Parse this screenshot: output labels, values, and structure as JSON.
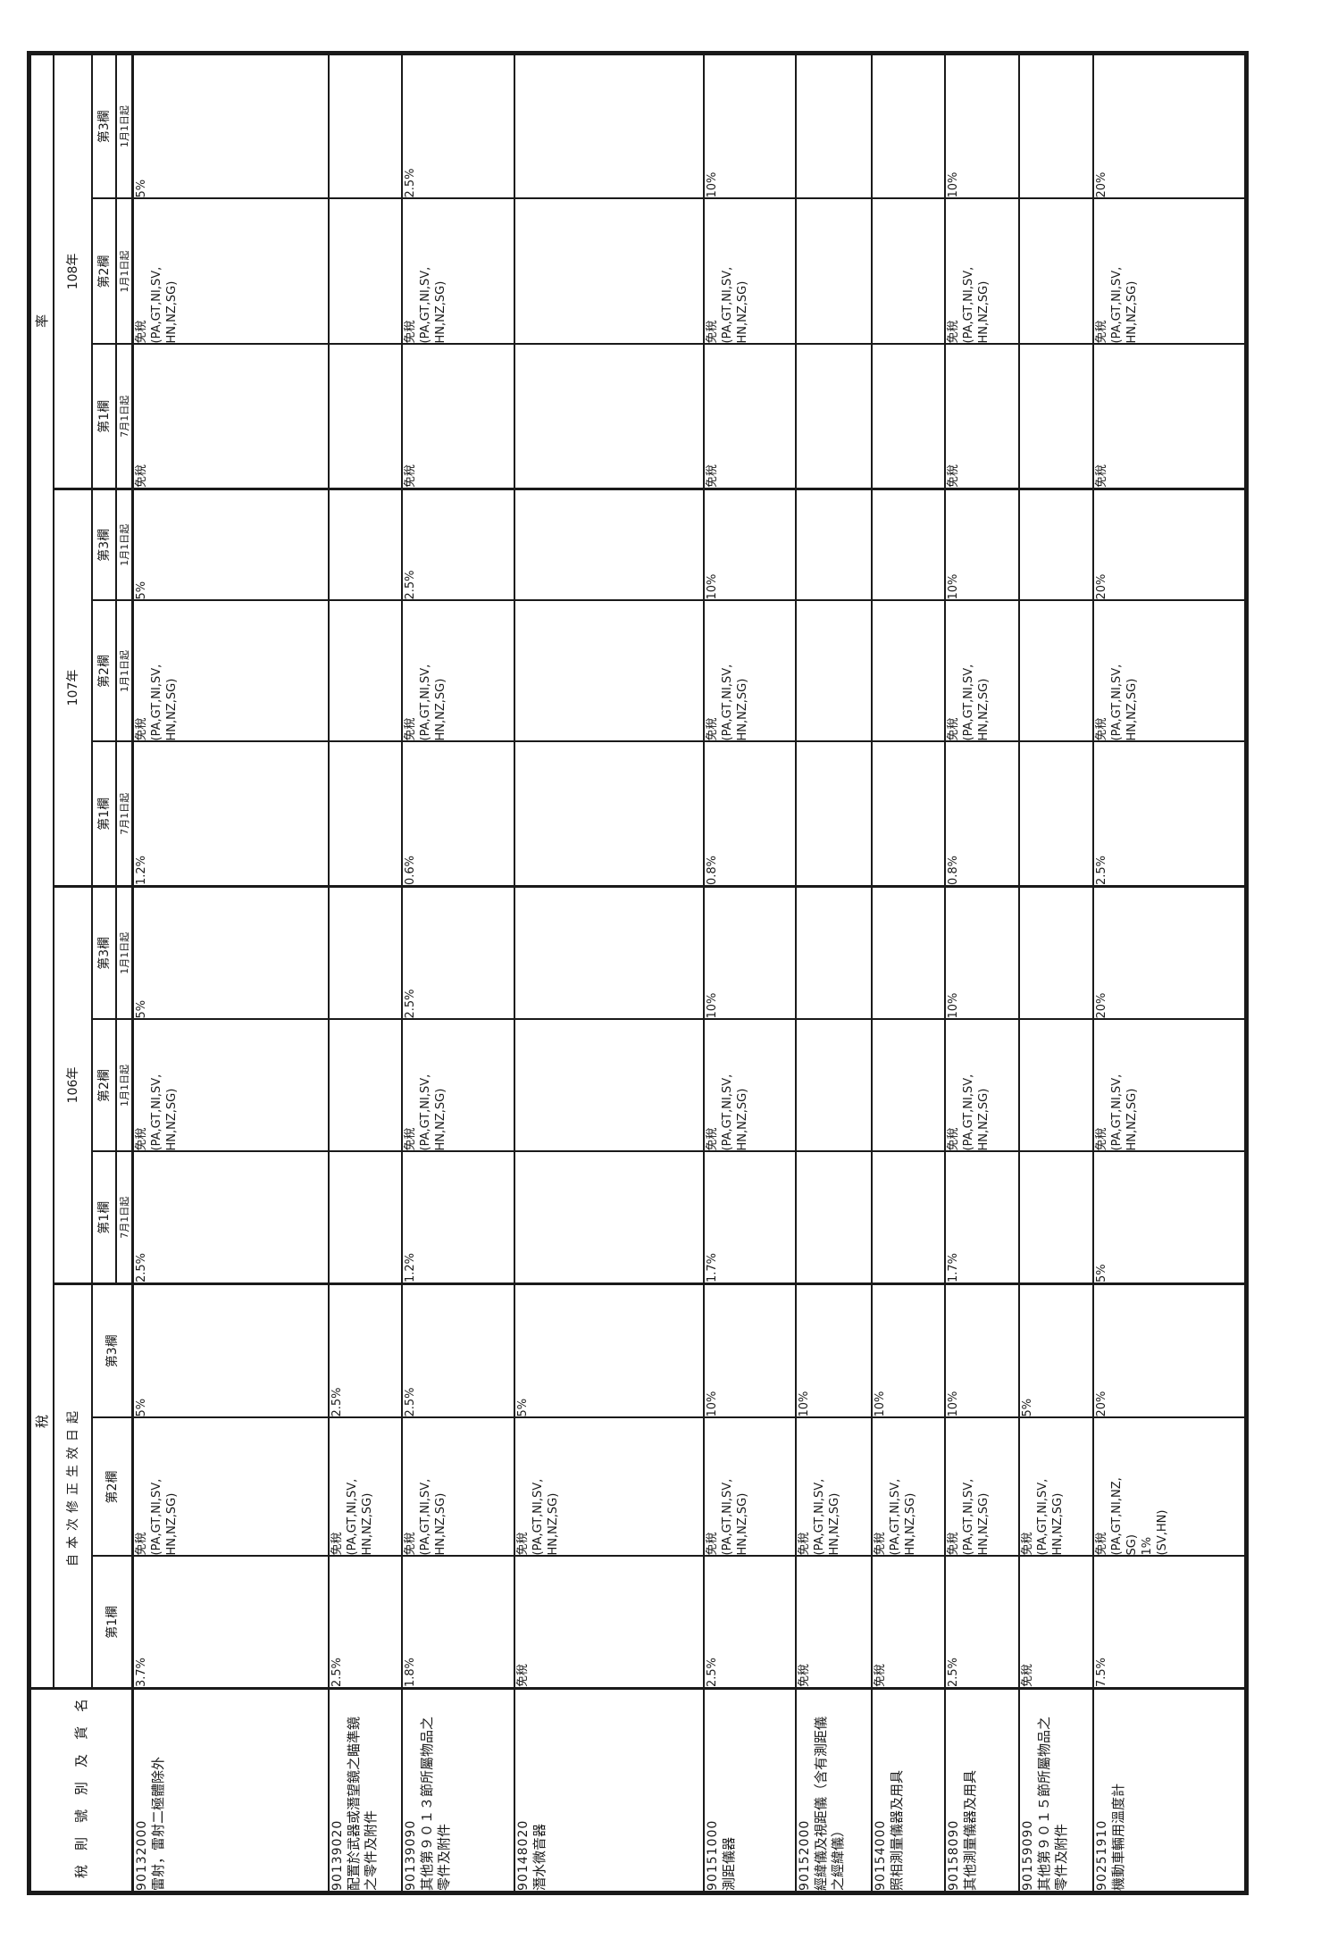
{
  "table": {
    "name_col_header": "稅則號別及貨名",
    "rate_header_chars": [
      "稅",
      "率"
    ],
    "free_note": [
      "免稅",
      "(PA,GT,NI,SV,",
      "HN,NZ,SG)"
    ],
    "groups": [
      {
        "label": "自本次修正生效日起",
        "cols": [
          {
            "label": "第1欄",
            "date": ""
          },
          {
            "label": "第2欄",
            "date": ""
          },
          {
            "label": "第3欄",
            "date": ""
          }
        ]
      },
      {
        "label": "106年",
        "cols": [
          {
            "label": "第1欄",
            "date": "7月1日起"
          },
          {
            "label": "第2欄",
            "date": "1月1日起"
          },
          {
            "label": "第3欄",
            "date": "1月1日起"
          }
        ]
      },
      {
        "label": "107年",
        "cols": [
          {
            "label": "第1欄",
            "date": "7月1日起"
          },
          {
            "label": "第2欄",
            "date": "1月1日起"
          },
          {
            "label": "第3欄",
            "date": "1月1日起"
          }
        ]
      },
      {
        "label": "108年",
        "cols": [
          {
            "label": "第1欄",
            "date": "7月1日起"
          },
          {
            "label": "第2欄",
            "date": "1月1日起"
          },
          {
            "label": "第3欄",
            "date": "1月1日起"
          }
        ]
      }
    ],
    "rows": [
      {
        "code": "90132000",
        "name": [
          "雷射，雷射二極體除外"
        ],
        "cells": [
          [
            "3.7%"
          ],
          "STD",
          [
            "5%"
          ],
          [
            "2.5%"
          ],
          "STD",
          [
            "5%"
          ],
          [
            "1.2%"
          ],
          "STD",
          [
            "5%"
          ],
          [
            "免稅"
          ],
          "STD",
          [
            "5%"
          ]
        ]
      },
      {
        "code": "90139020",
        "name": [
          "配置於武器或潛望鏡之瞄準鏡",
          "之零件及附件"
        ],
        "cells": [
          [
            "2.5%"
          ],
          "STD",
          [
            "2.5%"
          ],
          [],
          [],
          [],
          [],
          [],
          [],
          [],
          [],
          []
        ]
      },
      {
        "code": "90139090",
        "name": [
          "其他第９０１３節所屬物品之",
          "零件及附件"
        ],
        "cells": [
          [
            "1.8%"
          ],
          "STD",
          [
            "2.5%"
          ],
          [
            "1.2%"
          ],
          "STD",
          [
            "2.5%"
          ],
          [
            "0.6%"
          ],
          "STD",
          [
            "2.5%"
          ],
          [
            "免稅"
          ],
          "STD",
          [
            "2.5%"
          ]
        ]
      },
      {
        "code": "90148020",
        "name": [
          "潛水微音器"
        ],
        "cells": [
          [
            "免稅"
          ],
          "STD",
          [
            "5%"
          ],
          [],
          [],
          [],
          [],
          [],
          [],
          [],
          [],
          []
        ]
      },
      {
        "code": "90151000",
        "name": [
          "測距儀器"
        ],
        "cells": [
          [
            "2.5%"
          ],
          "STD",
          [
            "10%"
          ],
          [
            "1.7%"
          ],
          "STD",
          [
            "10%"
          ],
          [
            "0.8%"
          ],
          "STD",
          [
            "10%"
          ],
          [
            "免稅"
          ],
          "STD",
          [
            "10%"
          ]
        ]
      },
      {
        "code": "90152000",
        "name": [
          "經緯儀及視距儀（含有測距儀",
          "之經緯儀）"
        ],
        "cells": [
          [
            "免稅"
          ],
          "STD",
          [
            "10%"
          ],
          [],
          [],
          [],
          [],
          [],
          [],
          [],
          [],
          []
        ]
      },
      {
        "code": "90154000",
        "name": [
          "照相測量儀器及用具"
        ],
        "cells": [
          [
            "免稅"
          ],
          "STD",
          [
            "10%"
          ],
          [],
          [],
          [],
          [],
          [],
          [],
          [],
          [],
          []
        ]
      },
      {
        "code": "90158090",
        "name": [
          "其他測量儀器及用具"
        ],
        "cells": [
          [
            "2.5%"
          ],
          "STD",
          [
            "10%"
          ],
          [
            "1.7%"
          ],
          "STD",
          [
            "10%"
          ],
          [
            "0.8%"
          ],
          "STD",
          [
            "10%"
          ],
          [
            "免稅"
          ],
          "STD",
          [
            "10%"
          ]
        ]
      },
      {
        "code": "90159090",
        "name": [
          "其他第９０１５節所屬物品之",
          "零件及附件"
        ],
        "cells": [
          [
            "免稅"
          ],
          "STD",
          [
            "5%"
          ],
          [],
          [],
          [],
          [],
          [],
          [],
          [],
          [],
          []
        ]
      },
      {
        "code": "90251910",
        "name": [
          "機動車輛用溫度計"
        ],
        "cells": [
          [
            "7.5%"
          ],
          [
            "免稅",
            "(PA,GT,NI,NZ,",
            "SG)",
            "1%",
            "(SV,HN)"
          ],
          [
            "20%"
          ],
          [
            "5%"
          ],
          "STD",
          [
            "20%"
          ],
          [
            "2.5%"
          ],
          "STD",
          [
            "20%"
          ],
          [
            "免稅"
          ],
          "STD",
          [
            "20%"
          ]
        ]
      }
    ]
  }
}
